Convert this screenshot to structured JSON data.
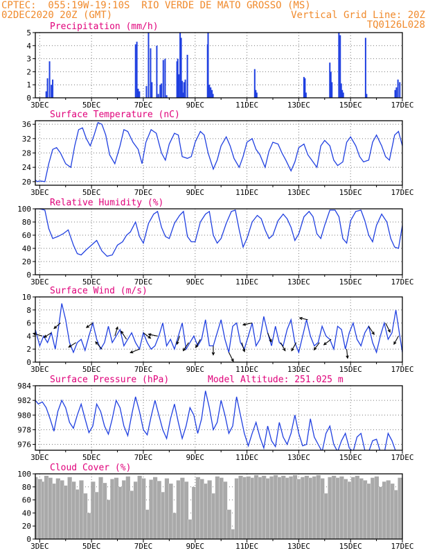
{
  "header": {
    "line1_left": "CPTEC:  055:19W-19:10S  RIO VERDE DE MATO GROSSO (MS)",
    "line2_left": "02DEC2020 20Z (GMT)",
    "line2_right": "Vertical Grid Line: 20Z",
    "line3_right": "TQ0126L028",
    "model_altitude": "Model Altitude: 251.025 m"
  },
  "colors": {
    "header": "#f08a2c",
    "title": "#e0007a",
    "series": "#1f3fe0",
    "cloud": "#a9a9a9",
    "axis": "#000000"
  },
  "x_axis": {
    "labels": [
      "3DEC",
      "5DEC",
      "7DEC",
      "9DEC",
      "11DEC",
      "13DEC",
      "15DEC",
      "17DEC"
    ],
    "label_days": [
      3,
      5,
      7,
      9,
      11,
      13,
      15,
      17
    ],
    "range_days": [
      2.83,
      17.0
    ]
  },
  "chart_data": [
    {
      "type": "bar",
      "title": "Precipitation (mm/h)",
      "ylim": [
        0,
        5
      ],
      "yticks": [
        0,
        1,
        2,
        3,
        4,
        5
      ],
      "x_days": [
        3.25,
        3.3,
        3.38,
        3.45,
        3.5,
        6.7,
        6.75,
        6.8,
        6.85,
        7.12,
        7.2,
        7.28,
        7.33,
        7.52,
        7.58,
        7.65,
        7.7,
        7.77,
        7.84,
        7.9,
        8.3,
        8.33,
        8.37,
        8.42,
        8.46,
        8.5,
        8.53,
        8.57,
        8.62,
        8.7,
        9.48,
        9.5,
        9.55,
        9.6,
        9.65,
        9.69,
        11.3,
        11.34,
        11.38,
        13.2,
        13.24,
        13.28,
        14.2,
        14.24,
        14.28,
        14.55,
        14.6,
        14.64,
        14.68,
        14.72,
        15.58,
        15.62,
        16.72,
        16.77,
        16.83,
        16.9
      ],
      "values": [
        0.5,
        1.5,
        2.8,
        1.0,
        1.4,
        4.1,
        4.3,
        0.7,
        0.5,
        0.9,
        5.0,
        3.8,
        1.2,
        4.0,
        0.3,
        1.0,
        1.1,
        2.9,
        3.0,
        0.2,
        2.8,
        3.0,
        1.8,
        5.0,
        4.6,
        1.3,
        0.4,
        1.2,
        1.4,
        3.3,
        4.1,
        5.0,
        1.0,
        0.8,
        0.6,
        0.3,
        2.2,
        0.6,
        0.4,
        1.6,
        1.5,
        0.4,
        2.7,
        2.0,
        1.2,
        5.0,
        4.8,
        1.1,
        0.6,
        0.4,
        4.6,
        0.3,
        0.6,
        0.8,
        1.4,
        1.2
      ]
    },
    {
      "type": "line",
      "title": "Surface Temperature (nC)",
      "ylim": [
        19,
        37
      ],
      "yticks": [
        20,
        24,
        28,
        32,
        36
      ],
      "x_days": [
        2.83,
        2.9,
        3.0,
        3.2,
        3.35,
        3.5,
        3.65,
        3.8,
        4.0,
        4.2,
        4.35,
        4.5,
        4.65,
        4.8,
        4.95,
        5.1,
        5.25,
        5.4,
        5.55,
        5.7,
        5.9,
        6.1,
        6.25,
        6.4,
        6.6,
        6.8,
        6.95,
        7.1,
        7.3,
        7.5,
        7.7,
        7.85,
        8.0,
        8.2,
        8.35,
        8.5,
        8.7,
        8.85,
        9.0,
        9.2,
        9.35,
        9.5,
        9.7,
        9.85,
        10.0,
        10.2,
        10.35,
        10.5,
        10.7,
        10.85,
        11.0,
        11.2,
        11.35,
        11.5,
        11.7,
        11.85,
        12.0,
        12.2,
        12.35,
        12.5,
        12.7,
        12.85,
        13.0,
        13.2,
        13.35,
        13.5,
        13.7,
        13.85,
        14.0,
        14.2,
        14.35,
        14.5,
        14.7,
        14.85,
        15.0,
        15.2,
        15.35,
        15.5,
        15.7,
        15.85,
        16.0,
        16.2,
        16.35,
        16.5,
        16.7,
        16.85,
        17.0
      ],
      "values": [
        20.5,
        20.0,
        20.2,
        20.0,
        25.0,
        29.0,
        29.5,
        28.0,
        25.0,
        24.0,
        30.0,
        34.5,
        35.0,
        32.0,
        30.0,
        33.0,
        36.5,
        36.0,
        33.0,
        27.5,
        25.0,
        30.0,
        34.5,
        34.0,
        31.0,
        29.0,
        25.0,
        31.0,
        34.5,
        33.5,
        28.0,
        26.0,
        30.5,
        33.5,
        33.0,
        27.0,
        26.5,
        27.0,
        31.0,
        34.0,
        33.0,
        28.0,
        23.5,
        26.0,
        30.0,
        32.5,
        30.0,
        26.5,
        24.0,
        27.0,
        31.0,
        32.0,
        29.0,
        27.5,
        24.0,
        28.5,
        31.0,
        30.5,
        28.0,
        26.0,
        23.0,
        25.5,
        29.5,
        30.5,
        27.5,
        26.0,
        24.0,
        30.0,
        31.5,
        30.0,
        26.0,
        24.5,
        25.5,
        31.0,
        32.5,
        30.0,
        27.0,
        25.5,
        26.0,
        31.0,
        33.0,
        30.0,
        27.0,
        26.0,
        33.0,
        34.0,
        30.0
      ]
    },
    {
      "type": "line",
      "title": "Relative Humidity (%)",
      "ylim": [
        0,
        100
      ],
      "yticks": [
        0,
        20,
        40,
        60,
        80,
        100
      ],
      "x_days": [
        2.83,
        3.0,
        3.2,
        3.35,
        3.5,
        3.7,
        3.9,
        4.1,
        4.3,
        4.45,
        4.6,
        4.8,
        5.0,
        5.2,
        5.4,
        5.6,
        5.8,
        6.0,
        6.2,
        6.35,
        6.5,
        6.7,
        6.85,
        7.0,
        7.2,
        7.4,
        7.55,
        7.7,
        7.85,
        8.0,
        8.2,
        8.4,
        8.55,
        8.7,
        8.85,
        9.0,
        9.2,
        9.4,
        9.55,
        9.7,
        9.85,
        10.0,
        10.2,
        10.4,
        10.55,
        10.7,
        10.85,
        11.0,
        11.2,
        11.4,
        11.55,
        11.7,
        11.85,
        12.0,
        12.2,
        12.4,
        12.55,
        12.7,
        12.85,
        13.0,
        13.2,
        13.4,
        13.55,
        13.7,
        13.85,
        14.0,
        14.2,
        14.4,
        14.55,
        14.7,
        14.85,
        15.0,
        15.2,
        15.4,
        15.55,
        15.7,
        15.85,
        16.0,
        16.2,
        16.4,
        16.55,
        16.7,
        16.85,
        17.0
      ],
      "values": [
        100,
        100,
        98,
        70,
        55,
        58,
        62,
        68,
        45,
        32,
        30,
        38,
        45,
        52,
        36,
        28,
        30,
        45,
        50,
        60,
        65,
        80,
        58,
        48,
        78,
        92,
        96,
        72,
        58,
        55,
        78,
        90,
        96,
        58,
        50,
        50,
        80,
        92,
        96,
        60,
        48,
        55,
        78,
        96,
        98,
        68,
        42,
        55,
        80,
        90,
        85,
        68,
        55,
        60,
        82,
        92,
        85,
        72,
        52,
        62,
        88,
        96,
        88,
        62,
        55,
        75,
        98,
        98,
        88,
        55,
        48,
        82,
        96,
        98,
        82,
        60,
        50,
        75,
        92,
        80,
        55,
        42,
        40,
        75
      ]
    },
    {
      "type": "line",
      "title": "Surface Wind (m/s)",
      "ylim": [
        0,
        10
      ],
      "yticks": [
        0,
        2,
        4,
        6,
        8,
        10
      ],
      "x_days": [
        2.83,
        3.0,
        3.15,
        3.3,
        3.45,
        3.6,
        3.75,
        3.85,
        4.0,
        4.15,
        4.3,
        4.45,
        4.6,
        4.75,
        4.9,
        5.05,
        5.2,
        5.35,
        5.5,
        5.65,
        5.8,
        5.95,
        6.1,
        6.25,
        6.4,
        6.55,
        6.7,
        6.85,
        7.0,
        7.15,
        7.3,
        7.45,
        7.6,
        7.75,
        7.9,
        8.05,
        8.2,
        8.35,
        8.5,
        8.65,
        8.8,
        8.95,
        9.1,
        9.25,
        9.4,
        9.55,
        9.7,
        9.85,
        10.0,
        10.15,
        10.3,
        10.45,
        10.6,
        10.75,
        10.9,
        11.05,
        11.2,
        11.35,
        11.5,
        11.65,
        11.8,
        11.95,
        12.1,
        12.25,
        12.4,
        12.55,
        12.7,
        12.85,
        13.0,
        13.15,
        13.3,
        13.45,
        13.6,
        13.75,
        13.9,
        14.05,
        14.2,
        14.35,
        14.5,
        14.65,
        14.8,
        14.95,
        15.1,
        15.25,
        15.4,
        15.55,
        15.7,
        15.85,
        16.0,
        16.15,
        16.3,
        16.45,
        16.6,
        16.75,
        16.9,
        17.0
      ],
      "values": [
        5.0,
        2.5,
        4.0,
        3.0,
        4.5,
        2.0,
        6.0,
        9.0,
        6.5,
        3.0,
        1.5,
        3.0,
        3.5,
        1.8,
        4.0,
        6.0,
        3.5,
        2.0,
        3.0,
        5.5,
        3.0,
        4.0,
        5.0,
        2.5,
        3.5,
        4.5,
        3.0,
        2.0,
        4.5,
        3.0,
        2.0,
        2.5,
        4.0,
        6.0,
        2.5,
        3.5,
        2.0,
        4.0,
        6.0,
        2.0,
        3.0,
        4.0,
        2.5,
        3.5,
        6.5,
        2.5,
        2.5,
        4.5,
        6.5,
        3.5,
        1.5,
        5.5,
        6.0,
        3.0,
        2.0,
        4.0,
        6.0,
        2.5,
        3.5,
        7.0,
        4.5,
        2.5,
        5.5,
        3.0,
        2.5,
        5.0,
        6.5,
        3.0,
        1.5,
        4.0,
        6.5,
        4.0,
        2.5,
        3.0,
        5.5,
        4.0,
        3.5,
        2.0,
        5.5,
        5.0,
        2.0,
        4.5,
        6.0,
        3.5,
        2.5,
        4.5,
        5.5,
        3.0,
        1.5,
        4.0,
        6.0,
        3.5,
        4.5,
        8.0,
        4.0,
        1.5
      ],
      "arrows": [
        {
          "day": 3.1,
          "dx": -1.0,
          "dy": -0.3
        },
        {
          "day": 3.45,
          "dx": -0.8,
          "dy": 0.5
        },
        {
          "day": 3.8,
          "dx": -0.7,
          "dy": 0.6
        },
        {
          "day": 4.4,
          "dx": -0.8,
          "dy": 0.5
        },
        {
          "day": 5.05,
          "dx": -0.7,
          "dy": 0.5
        },
        {
          "day": 5.4,
          "dx": -0.7,
          "dy": -0.8
        },
        {
          "day": 5.9,
          "dx": 0.3,
          "dy": -1.0
        },
        {
          "day": 6.35,
          "dx": -0.6,
          "dy": -0.9
        },
        {
          "day": 6.85,
          "dx": -1.0,
          "dy": 0.4
        },
        {
          "day": 7.0,
          "dx": 0.8,
          "dy": 0.6
        },
        {
          "day": 7.55,
          "dx": -1.0,
          "dy": -0.2
        },
        {
          "day": 8.4,
          "dx": -0.3,
          "dy": 0.9
        },
        {
          "day": 8.75,
          "dx": -0.6,
          "dy": 0.9
        },
        {
          "day": 9.2,
          "dx": -0.5,
          "dy": 0.9
        },
        {
          "day": 9.7,
          "dx": 0.0,
          "dy": 1.0
        },
        {
          "day": 10.3,
          "dx": 0.5,
          "dy": 1.0
        },
        {
          "day": 10.8,
          "dx": 0.3,
          "dy": 1.0
        },
        {
          "day": 11.2,
          "dx": -1.0,
          "dy": 0.2
        },
        {
          "day": 11.8,
          "dx": 0.4,
          "dy": 1.0
        },
        {
          "day": 12.3,
          "dx": 0.5,
          "dy": 0.9
        },
        {
          "day": 12.9,
          "dx": -0.5,
          "dy": 0.9
        },
        {
          "day": 13.35,
          "dx": -0.9,
          "dy": -0.2
        },
        {
          "day": 13.8,
          "dx": -0.6,
          "dy": 0.8
        },
        {
          "day": 14.25,
          "dx": -0.8,
          "dy": 0.6
        },
        {
          "day": 14.85,
          "dx": 0.1,
          "dy": 1.0
        },
        {
          "day": 15.7,
          "dx": 0.6,
          "dy": 0.9
        },
        {
          "day": 16.35,
          "dx": 0.5,
          "dy": 1.0
        },
        {
          "day": 16.85,
          "dx": -0.5,
          "dy": 0.9
        }
      ]
    },
    {
      "type": "line",
      "title": "Surface Pressure (hPa)",
      "ylim": [
        975.2,
        984
      ],
      "yticks": [
        976,
        978,
        980,
        982,
        984
      ],
      "x_days": [
        2.83,
        2.95,
        3.1,
        3.25,
        3.4,
        3.55,
        3.7,
        3.85,
        4.0,
        4.15,
        4.3,
        4.45,
        4.6,
        4.75,
        4.9,
        5.05,
        5.2,
        5.35,
        5.5,
        5.65,
        5.8,
        5.95,
        6.1,
        6.25,
        6.4,
        6.55,
        6.7,
        6.85,
        7.0,
        7.15,
        7.3,
        7.45,
        7.6,
        7.75,
        7.9,
        8.05,
        8.2,
        8.35,
        8.5,
        8.65,
        8.8,
        8.95,
        9.1,
        9.25,
        9.4,
        9.55,
        9.7,
        9.85,
        10.0,
        10.15,
        10.3,
        10.45,
        10.6,
        10.75,
        10.9,
        11.05,
        11.2,
        11.35,
        11.5,
        11.65,
        11.8,
        11.95,
        12.1,
        12.25,
        12.4,
        12.55,
        12.7,
        12.85,
        13.0,
        13.15,
        13.3,
        13.45,
        13.6,
        13.75,
        13.9,
        14.05,
        14.2,
        14.35,
        14.5,
        14.65,
        14.8,
        14.95,
        15.1,
        15.25,
        15.4,
        15.55,
        15.7,
        15.85,
        16.0,
        16.15,
        16.3,
        16.45,
        16.6,
        16.75,
        16.9
      ],
      "values": [
        982.0,
        981.5,
        981.8,
        981.0,
        979.5,
        977.8,
        980.5,
        982.0,
        981.0,
        979.0,
        978.2,
        980.0,
        981.5,
        979.5,
        977.6,
        978.5,
        981.5,
        980.5,
        978.5,
        977.4,
        979.5,
        982.0,
        981.0,
        978.5,
        977.2,
        980.0,
        982.5,
        980.5,
        978.0,
        977.3,
        979.8,
        982.0,
        980.0,
        978.0,
        976.8,
        979.5,
        981.5,
        979.0,
        976.8,
        978.5,
        981.0,
        980.0,
        977.5,
        979.5,
        983.3,
        981.0,
        978.0,
        979.0,
        982.0,
        980.0,
        977.5,
        978.5,
        982.5,
        980.0,
        977.5,
        975.8,
        977.5,
        979.0,
        977.0,
        975.5,
        978.5,
        976.5,
        975.7,
        979.0,
        977.0,
        976.0,
        977.5,
        980.0,
        977.5,
        975.8,
        976.0,
        979.5,
        977.0,
        976.0,
        975.0,
        977.5,
        978.5,
        976.0,
        975.0,
        976.5,
        977.5,
        975.5,
        975.0,
        977.0,
        977.5,
        975.2,
        975.0,
        976.5,
        976.7,
        975.0,
        974.8,
        977.5,
        976.5,
        975.0,
        974.5
      ]
    },
    {
      "type": "area",
      "title": "Cloud Cover (%)",
      "ylim": [
        0,
        100
      ],
      "yticks": [
        0,
        20,
        40,
        60,
        80,
        100
      ],
      "x_days": [
        2.83,
        3.0,
        3.1,
        3.25,
        3.4,
        3.55,
        3.7,
        3.85,
        4.0,
        4.15,
        4.3,
        4.45,
        4.6,
        4.75,
        4.9,
        5.05,
        5.2,
        5.35,
        5.5,
        5.65,
        5.8,
        5.95,
        6.1,
        6.25,
        6.4,
        6.55,
        6.7,
        6.85,
        7.0,
        7.15,
        7.3,
        7.45,
        7.6,
        7.75,
        7.9,
        8.05,
        8.2,
        8.35,
        8.5,
        8.65,
        8.8,
        8.95,
        9.1,
        9.25,
        9.4,
        9.55,
        9.7,
        9.85,
        10.0,
        10.15,
        10.3,
        10.45,
        10.6,
        10.75,
        10.9,
        11.05,
        11.2,
        11.35,
        11.5,
        11.65,
        11.8,
        11.95,
        12.1,
        12.25,
        12.4,
        12.55,
        12.7,
        12.85,
        13.0,
        13.15,
        13.3,
        13.45,
        13.6,
        13.75,
        13.9,
        14.05,
        14.2,
        14.35,
        14.5,
        14.65,
        14.8,
        14.95,
        15.1,
        15.25,
        15.4,
        15.55,
        15.7,
        15.85,
        16.0,
        16.15,
        16.3,
        16.45,
        16.6,
        16.75,
        16.9,
        17.0
      ],
      "values": [
        95,
        92,
        88,
        97,
        94,
        85,
        93,
        90,
        82,
        95,
        88,
        76,
        90,
        70,
        40,
        88,
        72,
        95,
        86,
        60,
        92,
        94,
        80,
        90,
        96,
        74,
        88,
        97,
        93,
        45,
        91,
        95,
        89,
        72,
        93,
        85,
        40,
        90,
        94,
        88,
        30,
        80,
        95,
        92,
        85,
        90,
        70,
        96,
        94,
        88,
        45,
        15,
        93,
        97,
        95,
        96,
        94,
        98,
        95,
        97,
        93,
        96,
        98,
        95,
        97,
        94,
        96,
        98,
        92,
        95,
        97,
        94,
        96,
        98,
        93,
        70,
        95,
        97,
        94,
        96,
        92,
        88,
        95,
        97,
        93,
        90,
        85,
        94,
        96,
        80,
        88,
        90,
        85,
        75,
        94,
        92
      ]
    }
  ]
}
